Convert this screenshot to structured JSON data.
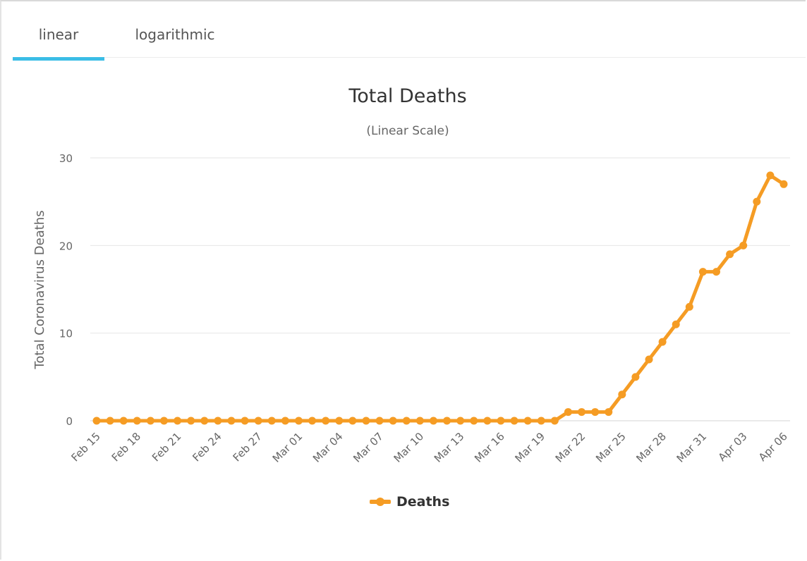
{
  "tabs": [
    {
      "label": "linear",
      "active": true
    },
    {
      "label": "logarithmic",
      "active": false
    }
  ],
  "colors": {
    "series": "#f59c24",
    "tab_active": "#3bbde6",
    "grid": "#e6e6e6"
  },
  "chart_data": {
    "type": "line",
    "title": "Total Deaths",
    "subtitle": "(Linear Scale)",
    "ylabel": "Total Coronavirus Deaths",
    "xlabel": "",
    "ylim": [
      0,
      30
    ],
    "yticks": [
      0,
      10,
      20,
      30
    ],
    "legend": "bottom-center",
    "categories": [
      "Feb 15",
      "Feb 16",
      "Feb 17",
      "Feb 18",
      "Feb 19",
      "Feb 20",
      "Feb 21",
      "Feb 22",
      "Feb 23",
      "Feb 24",
      "Feb 25",
      "Feb 26",
      "Feb 27",
      "Feb 28",
      "Feb 29",
      "Mar 01",
      "Mar 02",
      "Mar 03",
      "Mar 04",
      "Mar 05",
      "Mar 06",
      "Mar 07",
      "Mar 08",
      "Mar 09",
      "Mar 10",
      "Mar 11",
      "Mar 12",
      "Mar 13",
      "Mar 14",
      "Mar 15",
      "Mar 16",
      "Mar 17",
      "Mar 18",
      "Mar 19",
      "Mar 20",
      "Mar 21",
      "Mar 22",
      "Mar 23",
      "Mar 24",
      "Mar 25",
      "Mar 26",
      "Mar 27",
      "Mar 28",
      "Mar 29",
      "Mar 30",
      "Mar 31",
      "Apr 01",
      "Apr 02",
      "Apr 03",
      "Apr 04",
      "Apr 05",
      "Apr 06"
    ],
    "x_tick_labels": [
      "Feb 15",
      "Feb 18",
      "Feb 21",
      "Feb 24",
      "Feb 27",
      "Mar 01",
      "Mar 04",
      "Mar 07",
      "Mar 10",
      "Mar 13",
      "Mar 16",
      "Mar 19",
      "Mar 22",
      "Mar 25",
      "Mar 28",
      "Mar 31",
      "Apr 03",
      "Apr 06"
    ],
    "series": [
      {
        "name": "Deaths",
        "values": [
          0,
          0,
          0,
          0,
          0,
          0,
          0,
          0,
          0,
          0,
          0,
          0,
          0,
          0,
          0,
          0,
          0,
          0,
          0,
          0,
          0,
          0,
          0,
          0,
          0,
          0,
          0,
          0,
          0,
          0,
          0,
          0,
          0,
          0,
          0,
          1,
          1,
          1,
          1,
          3,
          5,
          7,
          9,
          11,
          13,
          17,
          17,
          19,
          20,
          25,
          28,
          27
        ]
      }
    ]
  }
}
